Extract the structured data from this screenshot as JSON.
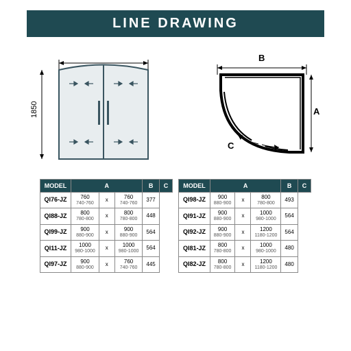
{
  "title": "LINE DRAWING",
  "colors": {
    "banner_bg": "#1f4a52",
    "banner_text": "#ffffff",
    "border": "#888888",
    "text": "#000000"
  },
  "diagram": {
    "height_label": "1850",
    "dim_labels": {
      "a": "A",
      "b": "B",
      "c": "C"
    }
  },
  "table_headers": {
    "model": "MODEL",
    "a": "A",
    "b": "B",
    "c": "C"
  },
  "left_table": [
    {
      "model": "QI76-JZ",
      "a_main": "760",
      "a_sub": "740-760",
      "b_main": "760",
      "b_sub": "740-760",
      "c": "377"
    },
    {
      "model": "QI88-JZ",
      "a_main": "800",
      "a_sub": "780-800",
      "b_main": "800",
      "b_sub": "780-800",
      "c": "448"
    },
    {
      "model": "QI99-JZ",
      "a_main": "900",
      "a_sub": "880-900",
      "b_main": "900",
      "b_sub": "880-900",
      "c": "564"
    },
    {
      "model": "QI11-JZ",
      "a_main": "1000",
      "a_sub": "980-1000",
      "b_main": "1000",
      "b_sub": "980-1000",
      "c": "564"
    },
    {
      "model": "QI97-JZ",
      "a_main": "900",
      "a_sub": "880-900",
      "b_main": "760",
      "b_sub": "740-760",
      "c": "445"
    }
  ],
  "right_table": [
    {
      "model": "QI98-JZ",
      "a_main": "900",
      "a_sub": "880-900",
      "b_main": "800",
      "b_sub": "780-800",
      "c": "493"
    },
    {
      "model": "QI91-JZ",
      "a_main": "900",
      "a_sub": "880-900",
      "b_main": "1000",
      "b_sub": "980-1000",
      "c": "564"
    },
    {
      "model": "QI92-JZ",
      "a_main": "900",
      "a_sub": "880-900",
      "b_main": "1200",
      "b_sub": "1180-1200",
      "c": "564"
    },
    {
      "model": "QI81-JZ",
      "a_main": "800",
      "a_sub": "780-800",
      "b_main": "1000",
      "b_sub": "980-1000",
      "c": "480"
    },
    {
      "model": "QI82-JZ",
      "a_main": "800",
      "a_sub": "780-800",
      "b_main": "1200",
      "b_sub": "1180-1200",
      "c": "480"
    }
  ]
}
